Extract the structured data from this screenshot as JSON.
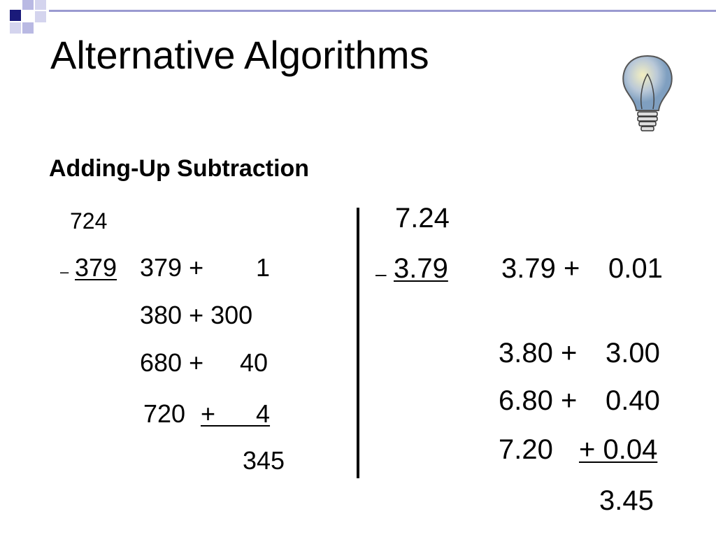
{
  "title": "Alternative Algorithms",
  "subtitle": "Adding-Up Subtraction",
  "whole": {
    "minuend": "724",
    "sign": "–",
    "subtrahend": "379",
    "steps": [
      {
        "base": "379 +",
        "add": "1"
      },
      {
        "base": "380 + 300",
        "add": ""
      },
      {
        "base": "680 +",
        "add": "40"
      },
      {
        "base": "720",
        "add": "+ 4"
      }
    ],
    "result": "345"
  },
  "decimal": {
    "minuend": "7.24",
    "sign": "–",
    "subtrahend": "3.79",
    "steps": [
      {
        "base": "3.79 +",
        "add": "0.01"
      },
      {
        "base": "3.80 +",
        "add": "3.00"
      },
      {
        "base": "6.80 +",
        "add": "0.40"
      },
      {
        "base": "7.20",
        "add": "+ 0.04"
      }
    ],
    "result": "3.45"
  }
}
